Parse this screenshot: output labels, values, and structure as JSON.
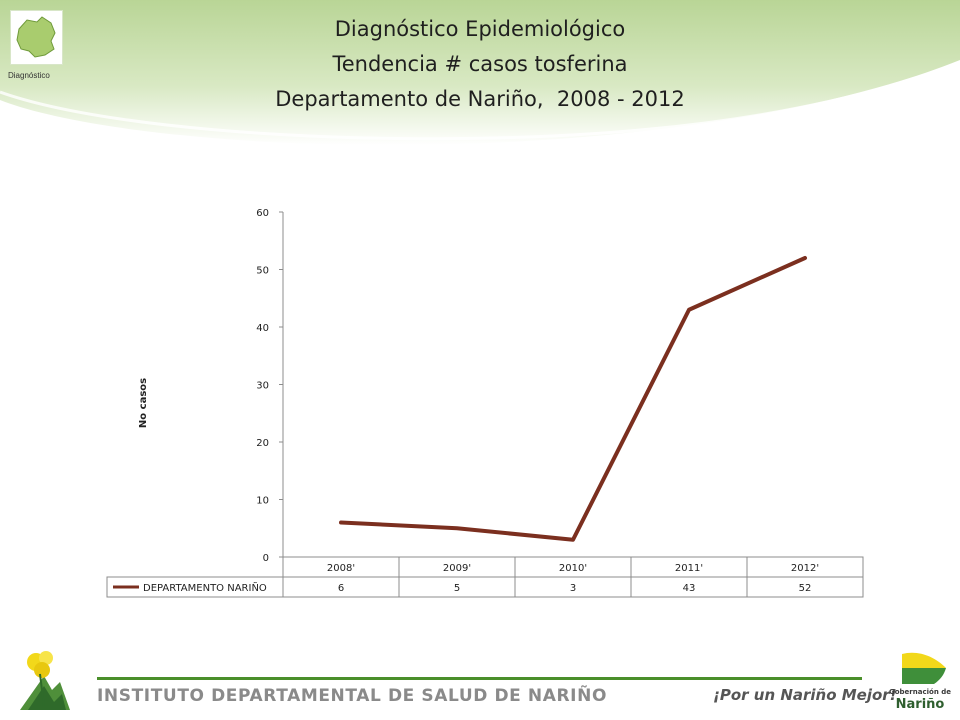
{
  "header": {
    "logo_caption": "Diagnóstico",
    "title_lines": [
      "Diagnóstico Epidemiológico",
      "Tendencia # casos tosferina",
      "Departamento de Nariño,  2008 - 2012"
    ]
  },
  "chart_data": {
    "type": "line",
    "title": "",
    "xlabel": "",
    "ylabel": "No casos",
    "ylim": [
      0,
      60
    ],
    "yticks": [
      "0",
      "10",
      "20",
      "30",
      "40",
      "50",
      "60"
    ],
    "categories": [
      "2008'",
      "2009'",
      "2010'",
      "2011'",
      "2012'"
    ],
    "series": [
      {
        "name": "DEPARTAMENTO NARIÑO",
        "values": [
          6,
          5,
          3,
          43,
          52
        ],
        "color": "#7b2f1f"
      }
    ],
    "data_table": true,
    "grid": false
  },
  "footer": {
    "institute": "INSTITUTO DEPARTAMENTAL DE SALUD DE NARIÑO",
    "slogan": "¡Por un Nariño Mejor!",
    "gobernacion_small": "Gobernación de",
    "gobernacion_big": "Nariño"
  },
  "colors": {
    "band_green": "#c9dfae",
    "accent_green": "#4a8f2a",
    "series_line": "#7b2f1f"
  }
}
